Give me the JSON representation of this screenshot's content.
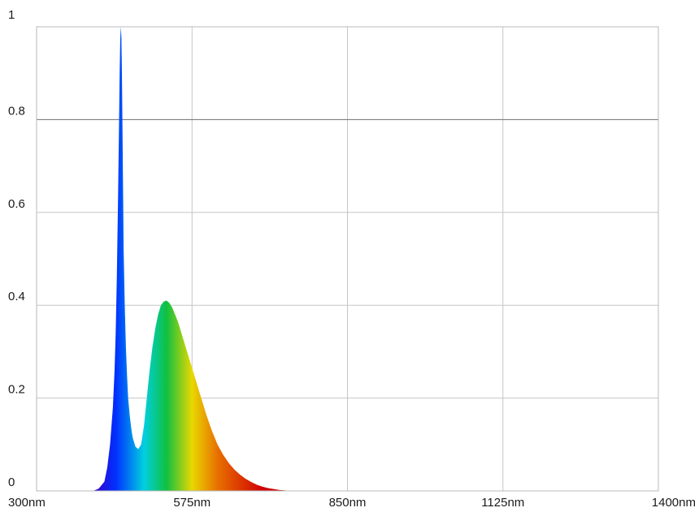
{
  "chart_data": {
    "type": "area",
    "title": "",
    "xlabel": "",
    "ylabel": "",
    "xlim": [
      300,
      1400
    ],
    "ylim": [
      0,
      1
    ],
    "grid": true,
    "legend": "none",
    "x_ticks": [
      {
        "value": 300,
        "label": "300nm"
      },
      {
        "value": 575,
        "label": "575nm"
      },
      {
        "value": 850,
        "label": "850nm"
      },
      {
        "value": 1125,
        "label": "1125nm"
      },
      {
        "value": 1400,
        "label": "1400nm"
      }
    ],
    "y_ticks": [
      {
        "value": 0,
        "label": "0"
      },
      {
        "value": 0.2,
        "label": "0.2"
      },
      {
        "value": 0.4,
        "label": "0.4"
      },
      {
        "value": 0.6,
        "label": "0.6"
      },
      {
        "value": 0.8,
        "label": "0.8"
      },
      {
        "value": 1,
        "label": "1"
      }
    ],
    "fill": "spectral-wavelength-gradient",
    "colors": {
      "violet": "#3a00c8",
      "blue": "#0030ff",
      "cyan": "#00d0e0",
      "green": "#10c040",
      "yellow": "#e8d800",
      "orange": "#e87000",
      "red": "#d00000"
    },
    "series": [
      {
        "x": [
          400,
          410,
          420,
          425,
          430,
          435,
          438,
          440,
          442,
          444,
          446,
          447,
          448,
          449,
          450,
          451,
          452,
          453,
          454,
          456,
          458,
          460,
          462,
          465,
          468,
          470,
          475,
          480,
          485,
          490,
          495,
          500,
          505,
          510,
          515,
          520,
          525,
          530,
          535,
          540,
          545,
          550,
          555,
          560,
          565,
          570,
          575,
          580,
          585,
          590,
          595,
          600,
          610,
          620,
          630,
          640,
          650,
          660,
          670,
          680,
          690,
          700,
          710,
          720,
          730,
          740,
          745
        ],
        "y": [
          0,
          0.005,
          0.02,
          0.05,
          0.1,
          0.18,
          0.26,
          0.34,
          0.46,
          0.62,
          0.8,
          0.9,
          0.97,
          1.0,
          0.98,
          0.9,
          0.78,
          0.65,
          0.52,
          0.4,
          0.31,
          0.25,
          0.2,
          0.16,
          0.13,
          0.115,
          0.095,
          0.09,
          0.1,
          0.14,
          0.2,
          0.26,
          0.31,
          0.35,
          0.38,
          0.4,
          0.408,
          0.41,
          0.405,
          0.395,
          0.38,
          0.365,
          0.345,
          0.325,
          0.305,
          0.285,
          0.265,
          0.245,
          0.225,
          0.205,
          0.185,
          0.165,
          0.13,
          0.1,
          0.078,
          0.06,
          0.046,
          0.035,
          0.026,
          0.019,
          0.013,
          0.009,
          0.006,
          0.004,
          0.002,
          0.001,
          0
        ]
      }
    ]
  }
}
